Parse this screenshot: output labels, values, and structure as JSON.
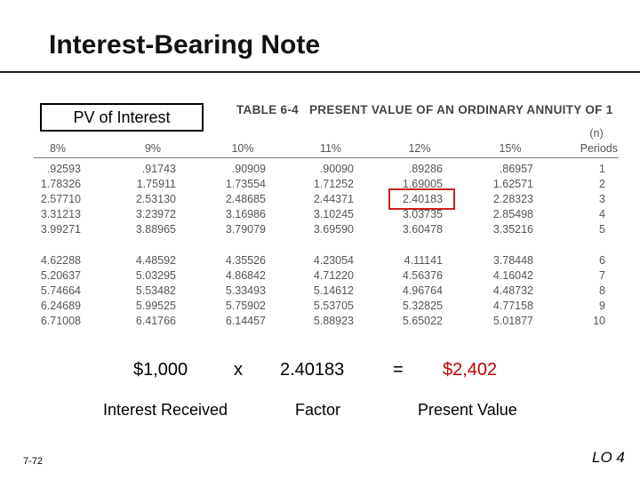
{
  "title": "Interest-Bearing Note",
  "callout": "PV of Interest",
  "table": {
    "title_left": "TABLE 6-4",
    "title_right": "PRESENT VALUE OF AN ORDINARY ANNUITY OF 1",
    "periods_symbol": "(n)",
    "headers": [
      "8%",
      "9%",
      "10%",
      "11%",
      "12%",
      "15%",
      "Periods"
    ],
    "rows": [
      [
        ".92593",
        ".91743",
        ".90909",
        ".90090",
        ".89286",
        ".86957",
        "1"
      ],
      [
        "1.78326",
        "1.75911",
        "1.73554",
        "1.71252",
        "1.69005",
        "1.62571",
        "2"
      ],
      [
        "2.57710",
        "2.53130",
        "2.48685",
        "2.44371",
        "2.40183",
        "2.28323",
        "3"
      ],
      [
        "3.31213",
        "3.23972",
        "3.16986",
        "3.10245",
        "3.03735",
        "2.85498",
        "4"
      ],
      [
        "3.99271",
        "3.88965",
        "3.79079",
        "3.69590",
        "3.60478",
        "3.35216",
        "5"
      ],
      [
        "4.62288",
        "4.48592",
        "4.35526",
        "4.23054",
        "4.11141",
        "3.78448",
        "6"
      ],
      [
        "5.20637",
        "5.03295",
        "4.86842",
        "4.71220",
        "4.56376",
        "4.16042",
        "7"
      ],
      [
        "5.74664",
        "5.53482",
        "5.33493",
        "5.14612",
        "4.96764",
        "4.48732",
        "8"
      ],
      [
        "6.24689",
        "5.99525",
        "5.75902",
        "5.53705",
        "5.32825",
        "4.77158",
        "9"
      ],
      [
        "6.71008",
        "6.41766",
        "6.14457",
        "5.88923",
        "5.65022",
        "5.01877",
        "10"
      ]
    ],
    "highlight_color": "#cc1f1f"
  },
  "equation": {
    "amount": "$1,000",
    "times": "x",
    "factor_value": "2.40183",
    "equals": "=",
    "result": "$2,402",
    "result_color": "#c00000"
  },
  "labels": {
    "amount": "Interest Received",
    "factor": "Factor",
    "result": "Present Value"
  },
  "footer": {
    "slide_number": "7-72",
    "learning_objective": "LO 4"
  }
}
